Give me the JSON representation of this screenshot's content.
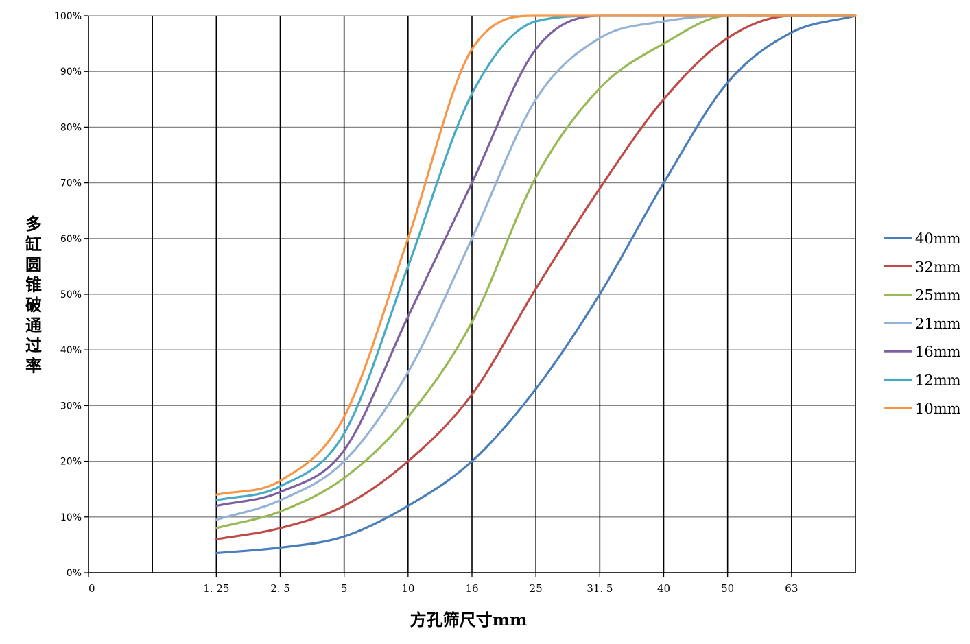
{
  "chart_data": {
    "type": "line",
    "xlabel": "方孔筛尺寸mm",
    "ylabel": "多缸圆锥破通过率",
    "x_categories": [
      "0",
      "",
      "1.25",
      "2.5",
      "5",
      "10",
      "16",
      "25",
      "31.5",
      "40",
      "50",
      "63",
      ""
    ],
    "x_tick_labels": [
      "0",
      "1. 25",
      "2. 5",
      "5",
      "10",
      "16",
      "25",
      "31. 5",
      "40",
      "50",
      "63"
    ],
    "y_ticks": [
      "0%",
      "10%",
      "20%",
      "30%",
      "40%",
      "50%",
      "60%",
      "70%",
      "80%",
      "90%",
      "100%"
    ],
    "ylim": [
      0,
      100
    ],
    "y_unit": "%",
    "grid": true,
    "legend_position": "right",
    "series": [
      {
        "name": "40mm",
        "color": "#4a7ebb",
        "points": [
          [
            2,
            3.5
          ],
          [
            3,
            4.5
          ],
          [
            4,
            6.5
          ],
          [
            5,
            12
          ],
          [
            6,
            20
          ],
          [
            7,
            33
          ],
          [
            8,
            50
          ],
          [
            9,
            70
          ],
          [
            10,
            88
          ],
          [
            11,
            97
          ],
          [
            12,
            100
          ]
        ]
      },
      {
        "name": "32mm",
        "color": "#be4b48",
        "points": [
          [
            2,
            6
          ],
          [
            3,
            8
          ],
          [
            4,
            12
          ],
          [
            5,
            20
          ],
          [
            6,
            32
          ],
          [
            7,
            51
          ],
          [
            8,
            69
          ],
          [
            9,
            85
          ],
          [
            10,
            96
          ],
          [
            11,
            100
          ],
          [
            12,
            100
          ]
        ]
      },
      {
        "name": "25mm",
        "color": "#98b954",
        "points": [
          [
            2,
            8
          ],
          [
            3,
            11
          ],
          [
            4,
            17
          ],
          [
            5,
            28
          ],
          [
            6,
            45
          ],
          [
            7,
            71
          ],
          [
            8,
            87
          ],
          [
            9,
            95
          ],
          [
            10,
            100
          ],
          [
            11,
            100
          ],
          [
            12,
            100
          ]
        ]
      },
      {
        "name": "21mm",
        "color": "#95b3d7",
        "points": [
          [
            2,
            9.5
          ],
          [
            3,
            13
          ],
          [
            4,
            20
          ],
          [
            5,
            36
          ],
          [
            6,
            60
          ],
          [
            7,
            85
          ],
          [
            8,
            96
          ],
          [
            9,
            99
          ],
          [
            10,
            100
          ],
          [
            11,
            100
          ],
          [
            12,
            100
          ]
        ]
      },
      {
        "name": "16mm",
        "color": "#7d60a0",
        "points": [
          [
            2,
            12
          ],
          [
            3,
            14.5
          ],
          [
            4,
            22
          ],
          [
            5,
            46
          ],
          [
            6,
            70
          ],
          [
            7,
            94
          ],
          [
            8,
            100
          ],
          [
            9,
            100
          ],
          [
            10,
            100
          ],
          [
            11,
            100
          ],
          [
            12,
            100
          ]
        ]
      },
      {
        "name": "12mm",
        "color": "#46aac5",
        "points": [
          [
            2,
            13
          ],
          [
            3,
            15.5
          ],
          [
            4,
            25
          ],
          [
            5,
            55
          ],
          [
            6,
            86
          ],
          [
            7,
            99
          ],
          [
            8,
            100
          ],
          [
            9,
            100
          ],
          [
            10,
            100
          ],
          [
            11,
            100
          ],
          [
            12,
            100
          ]
        ]
      },
      {
        "name": "10mm",
        "color": "#f79646",
        "points": [
          [
            2,
            14
          ],
          [
            3,
            16.5
          ],
          [
            4,
            28
          ],
          [
            5,
            60
          ],
          [
            6,
            94
          ],
          [
            7,
            100
          ],
          [
            8,
            100
          ],
          [
            9,
            100
          ],
          [
            10,
            100
          ],
          [
            11,
            100
          ],
          [
            12,
            100
          ]
        ]
      }
    ]
  }
}
